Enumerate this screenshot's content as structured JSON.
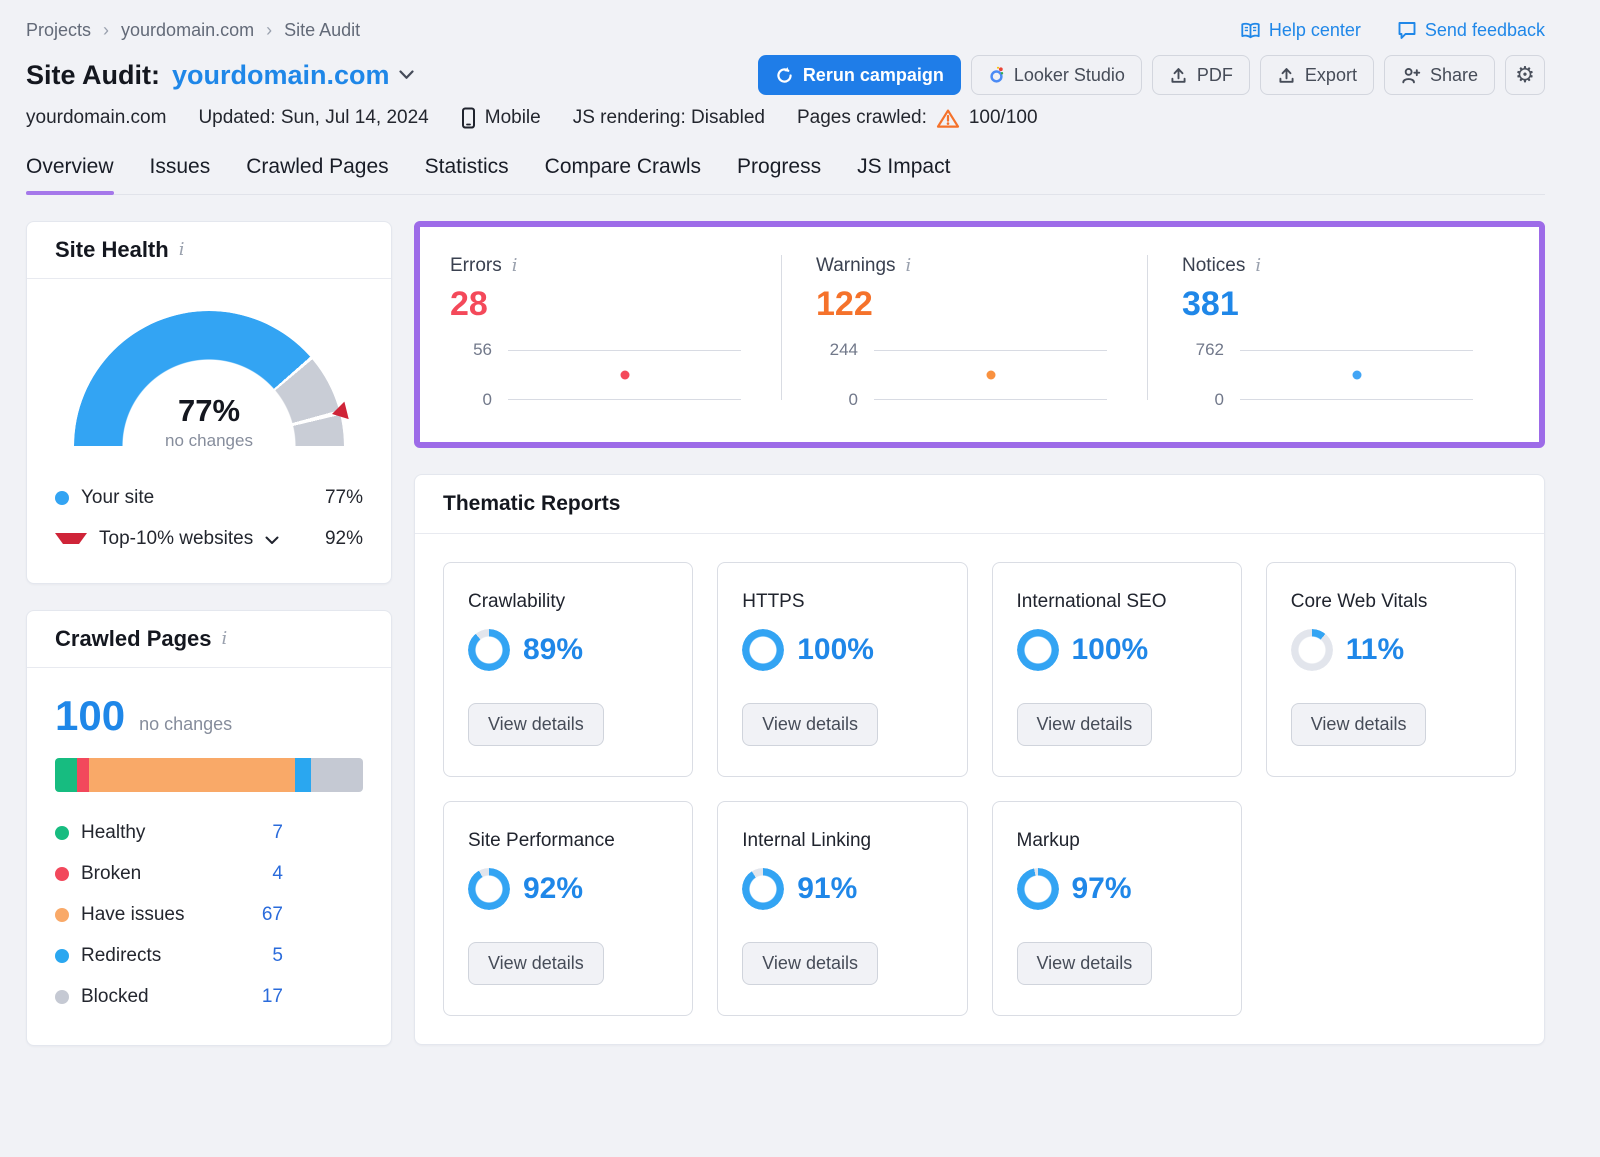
{
  "colors": {
    "background": "#f1f2f6",
    "accent_blue": "#1f87e8",
    "sky_blue": "#33a4f3",
    "purple_highlight": "#9d6be8",
    "tab_underline": "#a578ea",
    "error_red": "#f4495a",
    "warning_orange": "#f5722b",
    "notice_blue": "#1f87e8",
    "benchmark_red": "#cf2438",
    "healthy_green": "#17bc80",
    "broken_red": "#f2485c",
    "issues_orange": "#f9a968",
    "redirect_blue": "#2aa7f0",
    "blocked_gray": "#c5c9d3"
  },
  "topbar": {
    "breadcrumb": [
      {
        "label": "Projects",
        "interactable": true
      },
      {
        "label": "yourdomain.com",
        "interactable": true
      },
      {
        "label": "Site Audit",
        "interactable": false
      }
    ],
    "help_center": "Help center",
    "send_feedback": "Send feedback"
  },
  "header": {
    "title": "Site Audit:",
    "domain": "yourdomain.com",
    "buttons": {
      "rerun": "Rerun campaign",
      "looker": "Looker Studio",
      "pdf": "PDF",
      "export": "Export",
      "share": "Share"
    }
  },
  "meta": {
    "domain": "yourdomain.com",
    "updated": "Updated: Sun, Jul 14, 2024",
    "device": "Mobile",
    "js_rendering": "JS rendering: Disabled",
    "pages_label": "Pages crawled:",
    "pages_value": "100/100"
  },
  "tabs": [
    {
      "label": "Overview",
      "active": true
    },
    {
      "label": "Issues",
      "active": false
    },
    {
      "label": "Crawled Pages",
      "active": false
    },
    {
      "label": "Statistics",
      "active": false
    },
    {
      "label": "Compare Crawls",
      "active": false
    },
    {
      "label": "Progress",
      "active": false
    },
    {
      "label": "JS Impact",
      "active": false
    }
  ],
  "site_health": {
    "title": "Site Health",
    "score_percent": 77,
    "score": "77%",
    "subtitle": "no changes",
    "benchmark_percent": 92,
    "legend": [
      {
        "label": "Your site",
        "value": "77%",
        "marker": "dot",
        "color": "#33a4f3",
        "expandable": false
      },
      {
        "label": "Top-10% websites",
        "value": "92%",
        "marker": "triangle",
        "color": "#cf2438",
        "expandable": true
      }
    ]
  },
  "crawled_pages": {
    "title": "Crawled Pages",
    "total": "100",
    "subtitle": "no changes",
    "segments": [
      {
        "label": "Healthy",
        "value": 7,
        "color": "#17bc80"
      },
      {
        "label": "Broken",
        "value": 4,
        "color": "#f2485c"
      },
      {
        "label": "Have issues",
        "value": 67,
        "color": "#f9a968"
      },
      {
        "label": "Redirects",
        "value": 5,
        "color": "#2aa7f0"
      },
      {
        "label": "Blocked",
        "value": 17,
        "color": "#c5c9d3"
      }
    ]
  },
  "issues_summary": {
    "panels": [
      {
        "label": "Errors",
        "value": "28",
        "color": "#f4495a",
        "dot_color": "#f4495a",
        "axis_max": "56",
        "axis_min": "0"
      },
      {
        "label": "Warnings",
        "value": "122",
        "color": "#f5722b",
        "dot_color": "#f9913f",
        "axis_max": "244",
        "axis_min": "0"
      },
      {
        "label": "Notices",
        "value": "381",
        "color": "#1f87e8",
        "dot_color": "#42a5f5",
        "axis_max": "762",
        "axis_min": "0"
      }
    ]
  },
  "thematic_reports": {
    "title": "Thematic Reports",
    "view_details_label": "View details",
    "cards": [
      {
        "label": "Crawlability",
        "percent": 89,
        "percent_label": "89%"
      },
      {
        "label": "HTTPS",
        "percent": 100,
        "percent_label": "100%"
      },
      {
        "label": "International SEO",
        "percent": 100,
        "percent_label": "100%"
      },
      {
        "label": "Core Web Vitals",
        "percent": 11,
        "percent_label": "11%"
      },
      {
        "label": "Site Performance",
        "percent": 92,
        "percent_label": "92%"
      },
      {
        "label": "Internal Linking",
        "percent": 91,
        "percent_label": "91%"
      },
      {
        "label": "Markup",
        "percent": 97,
        "percent_label": "97%"
      }
    ]
  }
}
